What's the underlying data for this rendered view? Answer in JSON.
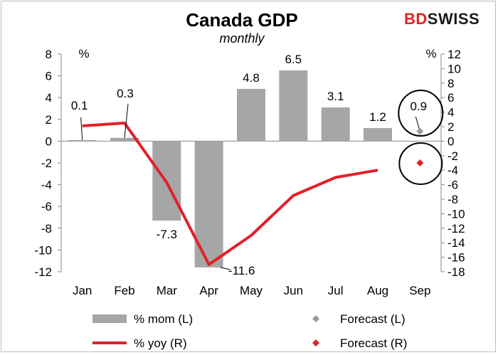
{
  "chart_data": {
    "type": "bar",
    "title": "Canada GDP",
    "subtitle": "monthly",
    "brand": "BDSWISS",
    "brand_colors": {
      "bd": "#e3202a",
      "swiss": "#1a1a1a"
    },
    "categories": [
      "Jan",
      "Feb",
      "Mar",
      "Apr",
      "May",
      "Jun",
      "Jul",
      "Aug",
      "Sep"
    ],
    "left_axis": {
      "unit": "%",
      "ylim": [
        -12,
        8
      ],
      "ticks": [
        "8",
        "6",
        "4",
        "2",
        "0",
        "-2",
        "-4",
        "-6",
        "-8",
        "-10",
        "-12"
      ]
    },
    "right_axis": {
      "unit": "%",
      "ylim": [
        -18,
        12
      ],
      "ticks": [
        "12",
        "10",
        "8",
        "6",
        "4",
        "2",
        "0",
        "-2",
        "-4",
        "-6",
        "-8",
        "-10",
        "-12",
        "-14",
        "-16",
        "-18"
      ]
    },
    "series": [
      {
        "name": "% mom (L)",
        "type": "bar",
        "axis": "left",
        "color": "#a6a6a6",
        "values": [
          0.1,
          0.3,
          -7.3,
          -11.6,
          4.8,
          6.5,
          3.1,
          1.2,
          null
        ],
        "labels": [
          "0.1",
          "0.3",
          "-7.3",
          "-11.6",
          "4.8",
          "6.5",
          "3.1",
          "1.2",
          ""
        ]
      },
      {
        "name": "% yoy (R)",
        "type": "line",
        "axis": "right",
        "color": "#e3202a",
        "values": [
          2.1,
          2.5,
          -5.7,
          -17.0,
          -13.0,
          -7.5,
          -5.0,
          -4.0,
          null
        ]
      },
      {
        "name": "Forecast (L)",
        "type": "marker",
        "axis": "left",
        "color": "#9a9a9a",
        "values": [
          null,
          null,
          null,
          null,
          null,
          null,
          null,
          null,
          0.9
        ],
        "labels": [
          "",
          "",
          "",
          "",
          "",
          "",
          "",
          "",
          "0.9"
        ]
      },
      {
        "name": "Forecast (R)",
        "type": "marker",
        "axis": "right",
        "color": "#e3202a",
        "values": [
          null,
          null,
          null,
          null,
          null,
          null,
          null,
          null,
          -3.0
        ]
      }
    ],
    "legend_position": "bottom",
    "grid": false
  }
}
